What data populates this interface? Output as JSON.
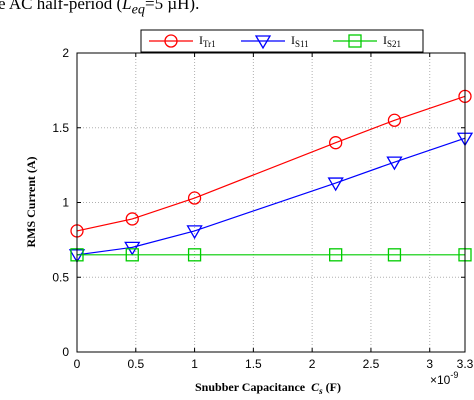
{
  "caption": {
    "prefix": "e AC half-period (",
    "symbol": "L",
    "subscript": "eq",
    "suffix": "=5 µH)."
  },
  "chart_data": {
    "type": "line",
    "x": [
      0,
      0.47,
      1.0,
      2.2,
      2.7,
      3.3
    ],
    "x_tick_labels": [
      "0",
      "0.5",
      "1",
      "1.5",
      "2",
      "2.5",
      "3",
      "3.3"
    ],
    "x_ticks": [
      0,
      0.5,
      1,
      1.5,
      2,
      2.5,
      3,
      3.3
    ],
    "x_exponent": "×10",
    "x_exponent_power": "-9",
    "xlim": [
      0,
      3.3
    ],
    "y_tick_labels": [
      "0",
      "0.5",
      "1",
      "1.5",
      "2"
    ],
    "y_ticks": [
      0,
      0.5,
      1,
      1.5,
      2
    ],
    "ylim": [
      0,
      2
    ],
    "xlabel": "Snubber Capacitance",
    "xlabel_symbol": "C",
    "xlabel_symbol_sub": "s",
    "xlabel_unit": "(F)",
    "ylabel": "RMS Current (A)",
    "grid": true,
    "legend_position": "top",
    "series": [
      {
        "name": "I",
        "name_sub": "Tr1",
        "color": "#ff0000",
        "marker": "circle",
        "values": [
          0.81,
          0.89,
          1.03,
          1.4,
          1.55,
          1.71
        ]
      },
      {
        "name": "I",
        "name_sub": "S11",
        "color": "#0000ff",
        "marker": "triangle-down",
        "values": [
          0.65,
          0.7,
          0.81,
          1.13,
          1.27,
          1.43
        ]
      },
      {
        "name": "I",
        "name_sub": "S21",
        "color": "#00cc00",
        "marker": "square",
        "values": [
          0.65,
          0.65,
          0.65,
          0.65,
          0.65,
          0.65
        ]
      }
    ]
  }
}
